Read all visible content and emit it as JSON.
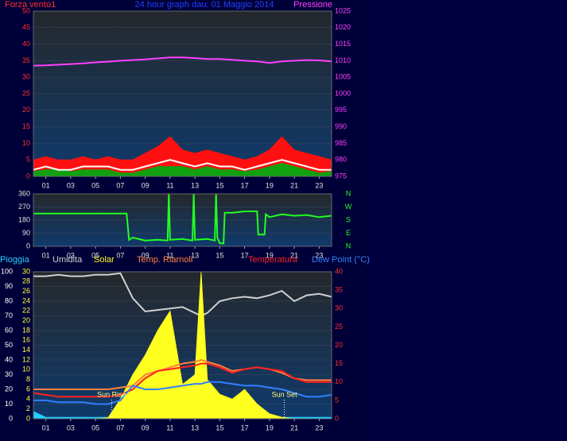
{
  "chart_data": [
    {
      "type": "line",
      "title": "24 hour graph dau: 01 Maggio 2014",
      "ylabel": "Forza vento1",
      "y2label": "Pressione",
      "x": [
        0,
        1,
        2,
        3,
        4,
        5,
        6,
        7,
        8,
        9,
        10,
        11,
        12,
        13,
        14,
        15,
        16,
        17,
        18,
        19,
        20,
        21,
        22,
        23,
        24
      ],
      "xlim": [
        0,
        24
      ],
      "xticks": [
        {
          "value": 1,
          "label": "01"
        },
        {
          "value": 3,
          "label": "03"
        },
        {
          "value": 5,
          "label": "05"
        },
        {
          "value": 7,
          "label": "07"
        },
        {
          "value": 9,
          "label": "09"
        },
        {
          "value": 11,
          "label": "11"
        },
        {
          "value": 13,
          "label": "13"
        },
        {
          "value": 15,
          "label": "15"
        },
        {
          "value": 17,
          "label": "17"
        },
        {
          "value": 19,
          "label": "19"
        },
        {
          "value": 21,
          "label": "21"
        },
        {
          "value": 23,
          "label": "23"
        }
      ],
      "ylim": [
        0,
        50
      ],
      "yticks": [
        0,
        5,
        10,
        15,
        20,
        25,
        30,
        35,
        40,
        45,
        50
      ],
      "ycolor": "#ff3030",
      "y2lim": [
        975,
        1025
      ],
      "y2ticks": [
        975,
        980,
        985,
        990,
        995,
        1000,
        1005,
        1010,
        1015,
        1020,
        1025
      ],
      "y2color": "#ff40ff",
      "grid": true,
      "series": [
        {
          "color": "#ff1010",
          "fill": true,
          "values": [
            5,
            6,
            5,
            5,
            6,
            5,
            6,
            5,
            5,
            7,
            9,
            12,
            8,
            7,
            8,
            7,
            6,
            5,
            6,
            8,
            12,
            8,
            7,
            6,
            5
          ]
        },
        {
          "color": "#10a010",
          "fill": true,
          "values": [
            1.5,
            2,
            2,
            1.5,
            2,
            2,
            2,
            1,
            1,
            2,
            3,
            3,
            3,
            2,
            3,
            2,
            2,
            1.5,
            2,
            3,
            4,
            3,
            2,
            1,
            1.5
          ]
        },
        {
          "color": "#ffffff",
          "fill": false,
          "values": [
            2,
            3,
            2,
            2,
            3,
            3,
            3,
            2,
            2,
            3,
            4,
            5,
            4,
            3,
            4,
            3,
            3,
            2,
            3,
            4,
            5,
            4,
            3,
            2,
            2
          ]
        },
        {
          "color": "#ff40ff",
          "fill": false,
          "axis": "y2",
          "values": [
            1008.5,
            1008.6,
            1008.8,
            1009,
            1009.2,
            1009.5,
            1009.7,
            1010,
            1010.2,
            1010.4,
            1010.7,
            1011,
            1011,
            1010.8,
            1010.5,
            1010.5,
            1010.3,
            1010,
            1009.8,
            1009.3,
            1009.8,
            1010,
            1010.2,
            1010.1,
            1009.8
          ]
        }
      ]
    },
    {
      "type": "line",
      "x": [
        0,
        7.5,
        7.7,
        8,
        9,
        10,
        10.8,
        10.9,
        11,
        12,
        12.8,
        12.9,
        13,
        14,
        14.6,
        14.7,
        14.8,
        15,
        15.3,
        15.4,
        16,
        17,
        18,
        18.1,
        18.6,
        18.7,
        19,
        20,
        21,
        22,
        23,
        24
      ],
      "xlim": [
        0,
        24
      ],
      "xticks": [
        {
          "value": 1,
          "label": "01"
        },
        {
          "value": 3,
          "label": "03"
        },
        {
          "value": 5,
          "label": "05"
        },
        {
          "value": 7,
          "label": "07"
        },
        {
          "value": 9,
          "label": "09"
        },
        {
          "value": 11,
          "label": "11"
        },
        {
          "value": 13,
          "label": "13"
        },
        {
          "value": 15,
          "label": "15"
        },
        {
          "value": 17,
          "label": "17"
        },
        {
          "value": 19,
          "label": "19"
        },
        {
          "value": 21,
          "label": "21"
        },
        {
          "value": 23,
          "label": "23"
        }
      ],
      "ylim": [
        0,
        360
      ],
      "yticks": [
        0,
        90,
        180,
        270,
        360
      ],
      "ycolor": "#e0e0e0",
      "y2lim": [
        0,
        360
      ],
      "y2ticks": [
        {
          "value": 360,
          "label": "N"
        },
        {
          "value": 270,
          "label": "W"
        },
        {
          "value": 180,
          "label": "S"
        },
        {
          "value": 90,
          "label": "E"
        },
        {
          "value": 0,
          "label": "N"
        }
      ],
      "y2color": "#20ff20",
      "grid": true,
      "series": [
        {
          "color": "#20ff20",
          "fill": false,
          "values": [
            225,
            225,
            45,
            60,
            40,
            45,
            40,
            360,
            45,
            50,
            40,
            360,
            45,
            50,
            40,
            360,
            60,
            20,
            20,
            230,
            230,
            240,
            240,
            80,
            80,
            220,
            200,
            220,
            210,
            215,
            200,
            210
          ]
        }
      ]
    },
    {
      "type": "line",
      "x": [
        0,
        1,
        2,
        3,
        4,
        5,
        6,
        7,
        8,
        9,
        10,
        11,
        12,
        13,
        13.5,
        14,
        15,
        16,
        17,
        18,
        19,
        20,
        21,
        22,
        23,
        24
      ],
      "xlim": [
        0,
        24
      ],
      "xticks": [
        {
          "value": 1,
          "label": "01"
        },
        {
          "value": 3,
          "label": "03"
        },
        {
          "value": 5,
          "label": "05"
        },
        {
          "value": 7,
          "label": "07"
        },
        {
          "value": 9,
          "label": "09"
        },
        {
          "value": 11,
          "label": "11"
        },
        {
          "value": 13,
          "label": "13"
        },
        {
          "value": 15,
          "label": "15"
        },
        {
          "value": 17,
          "label": "17"
        },
        {
          "value": 19,
          "label": "19"
        },
        {
          "value": 21,
          "label": "21"
        },
        {
          "value": 23,
          "label": "23"
        }
      ],
      "ylim": [
        0,
        100
      ],
      "yticks": [
        0,
        10,
        20,
        30,
        40,
        50,
        60,
        70,
        80,
        90,
        100
      ],
      "ycolor": "#ffffff",
      "y3lim": [
        0,
        30
      ],
      "y3ticks": [
        0,
        2,
        4,
        6,
        8,
        10,
        12,
        14,
        16,
        18,
        20,
        22,
        24,
        26,
        28,
        30
      ],
      "y3color": "#ffff40",
      "y2lim": [
        0,
        40
      ],
      "y2ticks": [
        0,
        5,
        10,
        15,
        20,
        25,
        30,
        35,
        40
      ],
      "y2color": "#ff3030",
      "grid": true,
      "series": [
        {
          "name": "Pioggia",
          "color": "#20d0ff",
          "fill": true,
          "values": [
            5,
            1,
            1,
            1,
            1,
            1,
            1,
            1,
            1,
            1,
            1,
            1,
            1,
            1,
            1,
            1,
            1,
            1,
            1,
            1,
            1,
            1,
            1,
            1,
            1,
            1
          ]
        },
        {
          "name": "Umidita",
          "color": "#d0d0d0",
          "fill": false,
          "values": [
            97,
            97,
            98,
            97,
            97,
            98,
            98,
            99,
            82,
            73,
            74,
            75,
            76,
            72,
            70,
            72,
            80,
            82,
            83,
            82,
            84,
            87,
            80,
            84,
            85,
            83
          ]
        },
        {
          "name": "Solar",
          "color": "#ffff20",
          "fill": true,
          "axis": "y3",
          "values": [
            0,
            0,
            0,
            0,
            0,
            0,
            0.2,
            4,
            9,
            13,
            18,
            22,
            7,
            9,
            30,
            8,
            5,
            4,
            6,
            3,
            1,
            0.3,
            0,
            0,
            0,
            0
          ]
        },
        {
          "name": "Temp. Riarnoli",
          "color": "#ff8040",
          "fill": false,
          "axis": "y2",
          "values": [
            8,
            8,
            8,
            8,
            8,
            8,
            8,
            8.5,
            9,
            12,
            13,
            14,
            15,
            15.5,
            16,
            15.5,
            14.5,
            13,
            13.5,
            14,
            13.5,
            12.5,
            11,
            10.5,
            10.5,
            10.5
          ]
        },
        {
          "name": "Temperatura",
          "color": "#ff2020",
          "fill": false,
          "axis": "y2",
          "values": [
            7,
            6.5,
            6,
            6,
            6,
            6,
            6,
            6.5,
            8,
            11,
            13,
            13.5,
            14,
            14.5,
            15,
            15,
            14,
            12.5,
            13.5,
            14,
            13.5,
            13,
            11,
            10,
            10,
            10
          ]
        },
        {
          "name": "Dew Point (°C)",
          "color": "#3080ff",
          "fill": false,
          "axis": "y2",
          "values": [
            5,
            5,
            4.5,
            4.5,
            4.5,
            4,
            4,
            5,
            9,
            8,
            8,
            8.5,
            9,
            9.5,
            9.5,
            10,
            10,
            9.5,
            9,
            9,
            8.5,
            8,
            7,
            6,
            6,
            6.5
          ]
        }
      ],
      "annotations": [
        {
          "text": "Sun Rise",
          "x": 6.3
        },
        {
          "text": "Sun Set",
          "x": 20.2
        }
      ]
    }
  ]
}
